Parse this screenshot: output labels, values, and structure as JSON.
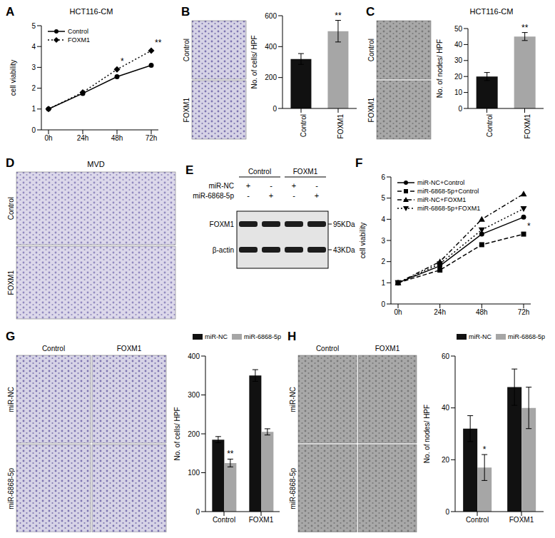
{
  "chart_data": [
    {
      "panel": "A",
      "type": "line",
      "title": "HCT116-CM",
      "y_label": "cell viability",
      "categories": [
        "0h",
        "24h",
        "48h",
        "72h"
      ],
      "ylim": [
        0,
        5
      ],
      "yticks": [
        0,
        1,
        2,
        3,
        4,
        5
      ],
      "legend": "upper left",
      "series": [
        {
          "name": "Control",
          "color": "#000000",
          "marker": "circle",
          "line_style": "solid",
          "values": [
            1,
            1.75,
            2.55,
            3.1
          ]
        },
        {
          "name": "FOXM1",
          "color": "#000000",
          "marker": "diamond",
          "line_style": "dotted",
          "values": [
            1,
            1.8,
            2.9,
            3.8
          ]
        }
      ],
      "annotations": [
        {
          "text": "*",
          "series": "FOXM1",
          "category": "48h"
        },
        {
          "text": "**",
          "series": "FOXM1",
          "category": "72h"
        }
      ]
    },
    {
      "type": "bar",
      "y_label": "No. of cells/ HPF",
      "categories": [
        "Control",
        "FOXM1"
      ],
      "values": [
        320,
        500
      ],
      "errors": [
        35,
        70
      ],
      "colors": [
        "#111111",
        "#a6a6a6"
      ],
      "ylim": [
        0,
        600
      ],
      "yticks": [
        0,
        200,
        400,
        600
      ],
      "annotations": [
        {
          "text": "**",
          "category": "FOXM1"
        }
      ]
    },
    {
      "type": "bar",
      "title": "HCT116-CM",
      "y_label": "No. of nodes/ HPF",
      "categories": [
        "Control",
        "FOXM1"
      ],
      "values": [
        20,
        45
      ],
      "errors": [
        2.5,
        2.5
      ],
      "colors": [
        "#111111",
        "#a6a6a6"
      ],
      "ylim": [
        0,
        50
      ],
      "yticks": [
        0,
        10,
        20,
        30,
        40,
        50
      ],
      "annotations": [
        {
          "text": "**",
          "category": "FOXM1"
        }
      ]
    },
    {
      "panel": "F",
      "type": "line",
      "y_label": "cell viability",
      "categories": [
        "0h",
        "24h",
        "48h",
        "72h"
      ],
      "ylim": [
        0,
        6
      ],
      "yticks": [
        0,
        1,
        2,
        3,
        4,
        5,
        6
      ],
      "legend": "upper left",
      "series": [
        {
          "name": "miR-NC+Control",
          "color": "#000000",
          "marker": "circle",
          "line_style": "solid",
          "values": [
            1,
            1.8,
            3.3,
            4.1
          ]
        },
        {
          "name": "miR-6868-5p+Control",
          "color": "#000000",
          "marker": "square",
          "line_style": "dashed",
          "values": [
            1,
            1.6,
            2.8,
            3.3
          ]
        },
        {
          "name": "miR-NC+FOXM1",
          "color": "#000000",
          "marker": "triangle",
          "line_style": "dashdot",
          "values": [
            1,
            2.0,
            4.0,
            5.2
          ]
        },
        {
          "name": "miR-6868-5p+FOXM1",
          "color": "#000000",
          "marker": "triangle-down",
          "line_style": "dotted",
          "values": [
            1,
            1.9,
            3.5,
            4.5
          ]
        }
      ],
      "annotations": [
        {
          "text": "*",
          "series": "miR-6868-5p+Control",
          "category": "72h"
        }
      ]
    },
    {
      "type": "bar",
      "y_label": "No. of cells/ HPF",
      "categories": [
        "Control",
        "FOXM1"
      ],
      "legend": "upper right",
      "ylim": [
        0,
        400
      ],
      "yticks": [
        0,
        100,
        200,
        300,
        400
      ],
      "series": [
        {
          "name": "miR-NC",
          "color": "#111111",
          "values": [
            185,
            350
          ],
          "errors": [
            8,
            15
          ]
        },
        {
          "name": "miR-6868-5p",
          "color": "#a6a6a6",
          "values": [
            125,
            205
          ],
          "errors": [
            10,
            8
          ]
        }
      ],
      "annotations": [
        {
          "text": "**",
          "series": "miR-6868-5p",
          "category": "Control"
        }
      ]
    },
    {
      "type": "bar",
      "y_label": "No. of nodes/ HPF",
      "categories": [
        "Control",
        "FOXM1"
      ],
      "legend": "upper right",
      "ylim": [
        0,
        60
      ],
      "yticks": [
        0,
        20,
        40,
        60
      ],
      "series": [
        {
          "name": "miR-NC",
          "color": "#111111",
          "values": [
            32,
            48
          ],
          "errors": [
            5,
            7
          ]
        },
        {
          "name": "miR-6868-5p",
          "color": "#a6a6a6",
          "values": [
            17,
            40
          ],
          "errors": [
            5,
            8
          ]
        }
      ],
      "annotations": [
        {
          "text": "*",
          "series": "miR-6868-5p",
          "category": "Control"
        }
      ]
    }
  ],
  "images": [
    {
      "panel": "B",
      "rows": [
        "Control",
        "FOXM1"
      ]
    },
    {
      "panel": "C",
      "rows": [
        "Control",
        "FOXM1"
      ]
    },
    {
      "panel": "D",
      "title": "MVD",
      "rows": [
        "Control",
        "FOXM1"
      ]
    },
    {
      "panel": "G",
      "columns": [
        "Control",
        "FOXM1"
      ],
      "rows": [
        "miR-NC",
        "miR-6868-5p"
      ]
    },
    {
      "panel": "H",
      "columns": [
        "Control",
        "FOXM1"
      ],
      "rows": [
        "miR-NC",
        "miR-6868-5p"
      ]
    }
  ],
  "western_blot": {
    "panel": "E",
    "groups": [
      "Control",
      "FOXM1"
    ],
    "treatments": [
      {
        "label": "miR-NC",
        "marks": [
          "+",
          "-",
          "+",
          "-"
        ]
      },
      {
        "label": "miR-6868-5p",
        "marks": [
          "-",
          "+",
          "-",
          "+"
        ]
      }
    ],
    "bands": [
      {
        "label": "FOXM1",
        "size": "95KDa"
      },
      {
        "label": "β-actin",
        "size": "43KDa"
      }
    ]
  }
}
